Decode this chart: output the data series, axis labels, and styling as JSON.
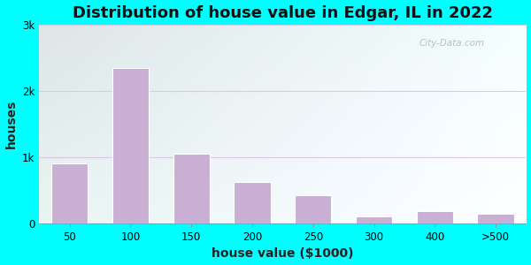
{
  "title": "Distribution of house value in Edgar, IL in 2022",
  "xlabel": "house value ($1000)",
  "ylabel": "houses",
  "categories": [
    "50",
    "100",
    "150",
    "200",
    "250",
    "300",
    "400",
    ">500"
  ],
  "values": [
    900,
    2350,
    1050,
    620,
    420,
    110,
    190,
    150
  ],
  "bar_color": "#c9afd4",
  "bar_edge_color": "#ffffff",
  "ylim": [
    0,
    3000
  ],
  "yticks": [
    0,
    1000,
    2000,
    3000
  ],
  "ytick_labels": [
    "0",
    "1k",
    "2k",
    "3k"
  ],
  "background_outer": "#00ffff",
  "grid_color": "#ddc8e0",
  "title_fontsize": 13,
  "axis_label_fontsize": 10,
  "watermark": "City-Data.com",
  "bar_width": 0.6,
  "figsize": [
    6.0,
    3.0
  ],
  "dpi": 100
}
